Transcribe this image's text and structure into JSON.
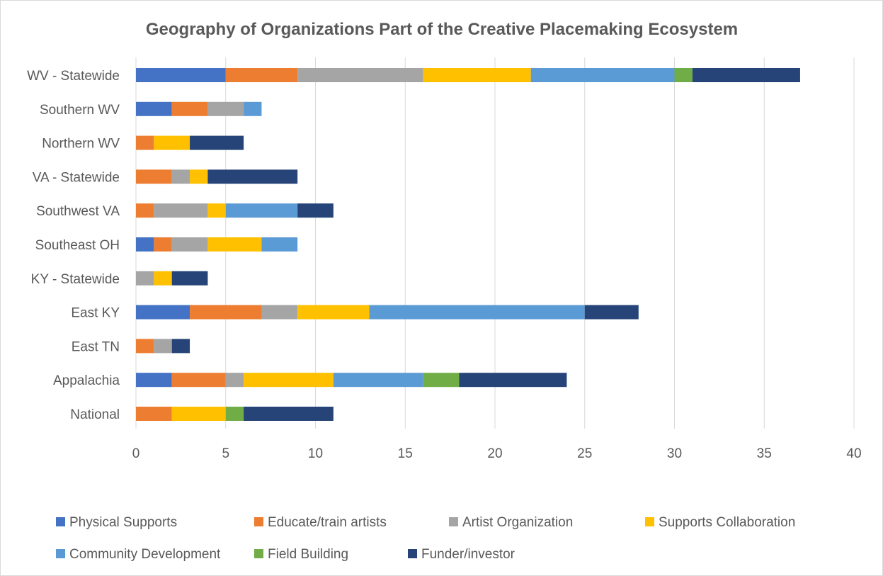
{
  "chart_data": {
    "type": "bar",
    "orientation": "horizontal",
    "stacked": true,
    "title": "Geography of Organizations Part of the Creative Placemaking Ecosystem",
    "categories": [
      "WV - Statewide",
      "Southern WV",
      "Northern WV",
      "VA - Statewide",
      "Southwest VA",
      "Southeast OH",
      "KY - Statewide",
      "East KY",
      "East TN",
      "Appalachia",
      "National"
    ],
    "series": [
      {
        "name": "Physical Supports",
        "color": "#4472C4",
        "values": [
          5,
          2,
          0,
          0,
          0,
          1,
          0,
          3,
          0,
          2,
          0
        ]
      },
      {
        "name": "Educate/train artists",
        "color": "#ED7D31",
        "values": [
          4,
          2,
          1,
          2,
          1,
          1,
          0,
          4,
          1,
          3,
          2
        ]
      },
      {
        "name": "Artist Organization",
        "color": "#A5A5A5",
        "values": [
          7,
          2,
          0,
          1,
          3,
          2,
          1,
          2,
          1,
          1,
          0
        ]
      },
      {
        "name": "Supports Collaboration",
        "color": "#FFC000",
        "values": [
          6,
          0,
          2,
          1,
          1,
          3,
          1,
          4,
          0,
          5,
          3
        ]
      },
      {
        "name": "Community Development",
        "color": "#5B9BD5",
        "values": [
          8,
          1,
          0,
          0,
          4,
          2,
          0,
          12,
          0,
          5,
          0
        ]
      },
      {
        "name": "Field Building",
        "color": "#70AD47",
        "values": [
          1,
          0,
          0,
          0,
          0,
          0,
          0,
          0,
          0,
          2,
          1
        ]
      },
      {
        "name": "Funder/investor",
        "color": "#264478",
        "values": [
          6,
          0,
          3,
          5,
          2,
          0,
          2,
          3,
          1,
          6,
          5
        ]
      }
    ],
    "xlim": [
      0,
      40
    ],
    "xticks": [
      "0",
      "5",
      "10",
      "15",
      "20",
      "25",
      "30",
      "35",
      "40"
    ],
    "grid": true,
    "legend_position": "bottom"
  }
}
